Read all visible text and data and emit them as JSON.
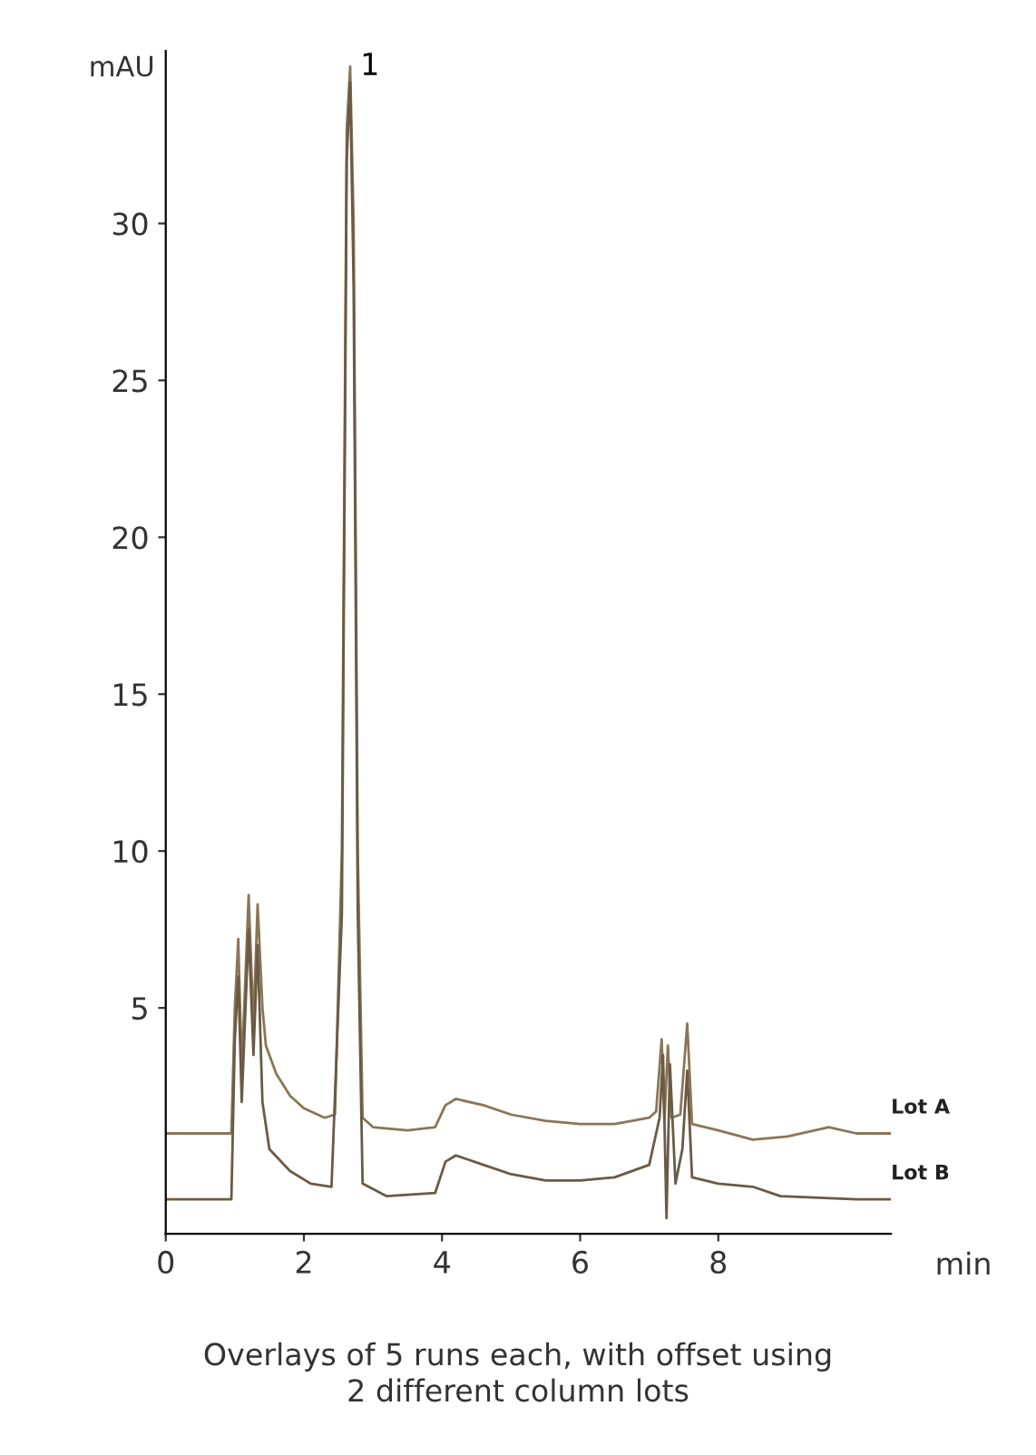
{
  "chart_data": {
    "type": "line",
    "xlabel": "min",
    "ylabel": "mAU",
    "xlim": [
      0,
      10.5
    ],
    "xticks": [
      0,
      2,
      4,
      6,
      8
    ],
    "ylim": [
      -2.2,
      35.5
    ],
    "yticks": [
      5,
      10,
      15,
      20,
      25,
      30
    ],
    "grid": false,
    "legend": false,
    "marker": "none",
    "line_style": "solid",
    "annotations": [
      {
        "text": "1",
        "x": 2.67,
        "y": 35
      },
      "Overlays of 5 runs each, with offset using\n2 different column lots"
    ],
    "series": [
      {
        "name": "Lot A",
        "color": "#8a7656",
        "x": [
          0,
          0.95,
          1.0,
          1.05,
          1.1,
          1.2,
          1.27,
          1.33,
          1.4,
          1.45,
          1.6,
          1.8,
          2.0,
          2.3,
          2.45,
          2.55,
          2.62,
          2.67,
          2.72,
          2.78,
          2.85,
          3.0,
          3.5,
          3.9,
          4.05,
          4.2,
          4.6,
          5.0,
          5.5,
          6.0,
          6.5,
          7.0,
          7.1,
          7.18,
          7.22,
          7.27,
          7.32,
          7.45,
          7.55,
          7.62,
          8.0,
          8.5,
          9.0,
          9.6,
          10.0,
          10.5
        ],
        "values": [
          1.0,
          1.0,
          5.0,
          7.2,
          3.0,
          8.6,
          4.5,
          8.3,
          5.0,
          3.8,
          2.9,
          2.2,
          1.8,
          1.5,
          1.6,
          10,
          33,
          35,
          30,
          10,
          1.5,
          1.2,
          1.1,
          1.2,
          1.9,
          2.1,
          1.9,
          1.6,
          1.4,
          1.3,
          1.3,
          1.5,
          1.7,
          4.0,
          1.4,
          3.8,
          1.5,
          1.6,
          4.5,
          1.3,
          1.1,
          0.8,
          0.9,
          1.2,
          1.0,
          1.0
        ]
      },
      {
        "name": "Lot B",
        "color": "#6b5a44",
        "x": [
          0,
          0.95,
          1.0,
          1.05,
          1.1,
          1.2,
          1.27,
          1.33,
          1.4,
          1.5,
          1.8,
          2.1,
          2.4,
          2.55,
          2.62,
          2.67,
          2.72,
          2.78,
          2.85,
          3.2,
          3.9,
          4.05,
          4.2,
          4.6,
          5.0,
          5.5,
          6.0,
          6.5,
          7.0,
          7.15,
          7.2,
          7.25,
          7.3,
          7.38,
          7.48,
          7.55,
          7.62,
          8.0,
          8.5,
          8.9,
          10.0,
          10.5
        ],
        "values": [
          -1.1,
          -1.1,
          4.0,
          6.0,
          2.0,
          7.5,
          3.5,
          7.0,
          2.0,
          0.5,
          -0.2,
          -0.6,
          -0.7,
          8,
          32,
          34.5,
          28,
          8,
          -0.6,
          -1.0,
          -0.9,
          0.1,
          0.3,
          0.0,
          -0.3,
          -0.5,
          -0.5,
          -0.4,
          0.0,
          1.5,
          3.5,
          -1.7,
          3.2,
          -0.6,
          0.5,
          3.0,
          -0.4,
          -0.6,
          -0.7,
          -1.0,
          -1.1,
          -1.1
        ]
      }
    ]
  }
}
